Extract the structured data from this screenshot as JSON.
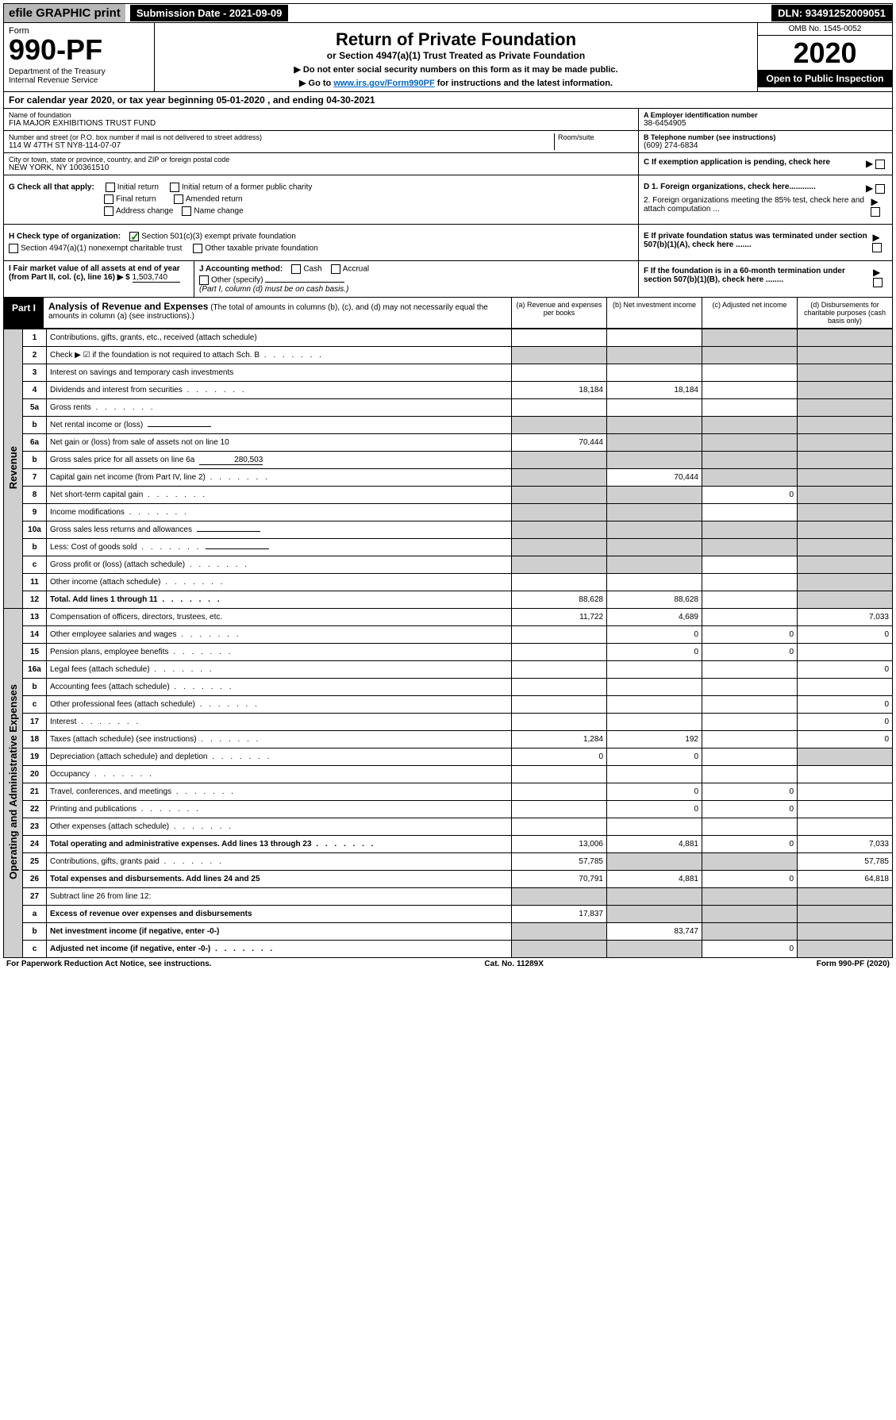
{
  "topbar": {
    "efile": "efile GRAPHIC print",
    "submission": "Submission Date - 2021-09-09",
    "dln": "DLN: 93491252009051"
  },
  "header": {
    "form_label": "Form",
    "form_number": "990-PF",
    "dept": "Department of the Treasury\nInternal Revenue Service",
    "title": "Return of Private Foundation",
    "subtitle": "or Section 4947(a)(1) Trust Treated as Private Foundation",
    "note1": "▶ Do not enter social security numbers on this form as it may be made public.",
    "note2_prefix": "▶ Go to ",
    "note2_link": "www.irs.gov/Form990PF",
    "note2_suffix": " for instructions and the latest information.",
    "omb": "OMB No. 1545-0052",
    "year": "2020",
    "open": "Open to Public Inspection"
  },
  "calyear": "For calendar year 2020, or tax year beginning 05-01-2020          , and ending 04-30-2021",
  "name_block": {
    "label": "Name of foundation",
    "value": "FIA MAJOR EXHIBITIONS TRUST FUND"
  },
  "ein_block": {
    "label": "A Employer identification number",
    "value": "38-6454905"
  },
  "addr_block": {
    "label": "Number and street (or P.O. box number if mail is not delivered to street address)",
    "value": "114 W 47TH ST NY8-114-07-07",
    "room_label": "Room/suite"
  },
  "phone_block": {
    "label": "B Telephone number (see instructions)",
    "value": "(609) 274-6834"
  },
  "city_block": {
    "label": "City or town, state or province, country, and ZIP or foreign postal code",
    "value": "NEW YORK, NY  100361510"
  },
  "c_block": "C If exemption application is pending, check here",
  "g_block": {
    "label": "G Check all that apply:",
    "initial": "Initial return",
    "final": "Final return",
    "address": "Address change",
    "initial_former": "Initial return of a former public charity",
    "amended": "Amended return",
    "name_change": "Name change"
  },
  "d_block": {
    "d1": "D 1. Foreign organizations, check here............",
    "d2": "2. Foreign organizations meeting the 85% test, check here and attach computation ..."
  },
  "h_block": {
    "label": "H Check type of organization:",
    "opt1": "Section 501(c)(3) exempt private foundation",
    "opt2": "Section 4947(a)(1) nonexempt charitable trust",
    "opt3": "Other taxable private foundation"
  },
  "e_block": "E  If private foundation status was terminated under section 507(b)(1)(A), check here .......",
  "i_block": {
    "label": "I Fair market value of all assets at end of year (from Part II, col. (c), line 16) ▶ $",
    "value": "1,503,740"
  },
  "j_block": {
    "label": "J Accounting method:",
    "cash": "Cash",
    "accrual": "Accrual",
    "other": "Other (specify)",
    "note": "(Part I, column (d) must be on cash basis.)"
  },
  "f_block": "F  If the foundation is in a 60-month termination under section 507(b)(1)(B), check here ........",
  "part1": {
    "label": "Part I",
    "title": "Analysis of Revenue and Expenses",
    "note": "(The total of amounts in columns (b), (c), and (d) may not necessarily equal the amounts in column (a) (see instructions).)",
    "col_a": "(a)   Revenue and expenses per books",
    "col_b": "(b)  Net investment income",
    "col_c": "(c)  Adjusted net income",
    "col_d": "(d)  Disbursements for charitable purposes (cash basis only)"
  },
  "vlabels": {
    "revenue": "Revenue",
    "expenses": "Operating and Administrative Expenses"
  },
  "rows": [
    {
      "n": "1",
      "d": "shade",
      "a": "",
      "b": "",
      "c": "shade"
    },
    {
      "n": "2",
      "d": "shade",
      "a": "shade",
      "b": "shade",
      "c": "shade",
      "dots": true
    },
    {
      "n": "3",
      "d": "shade",
      "a": "",
      "b": "",
      "c": ""
    },
    {
      "n": "4",
      "d": "shade",
      "a": "18,184",
      "b": "18,184",
      "c": "",
      "dots": true
    },
    {
      "n": "5a",
      "d": "shade",
      "a": "",
      "b": "",
      "c": "",
      "dots": true
    },
    {
      "n": "b",
      "d": "shade",
      "a": "shade",
      "b": "shade",
      "c": "shade",
      "inline": true
    },
    {
      "n": "6a",
      "d": "shade",
      "a": "70,444",
      "b": "shade",
      "c": "shade"
    },
    {
      "n": "b",
      "d": "shade",
      "a": "shade",
      "b": "shade",
      "c": "shade",
      "inline": true,
      "inline_val": "280,503"
    },
    {
      "n": "7",
      "d": "shade",
      "a": "shade",
      "b": "70,444",
      "c": "shade",
      "dots": true
    },
    {
      "n": "8",
      "d": "shade",
      "a": "shade",
      "b": "shade",
      "c": "0",
      "dots": true
    },
    {
      "n": "9",
      "d": "shade",
      "a": "shade",
      "b": "shade",
      "c": "",
      "dots": true
    },
    {
      "n": "10a",
      "d": "shade",
      "a": "shade",
      "b": "shade",
      "c": "shade",
      "inline": true
    },
    {
      "n": "b",
      "d": "shade",
      "a": "shade",
      "b": "shade",
      "c": "shade",
      "inline": true,
      "dots": true
    },
    {
      "n": "c",
      "d": "shade",
      "a": "shade",
      "b": "shade",
      "c": "",
      "dots": true
    },
    {
      "n": "11",
      "d": "shade",
      "a": "",
      "b": "",
      "c": "",
      "dots": true
    },
    {
      "n": "12",
      "d": "shade",
      "a": "88,628",
      "b": "88,628",
      "c": "",
      "dots": true,
      "bold": true
    }
  ],
  "exp_rows": [
    {
      "n": "13",
      "d": "7,033",
      "a": "11,722",
      "b": "4,689",
      "c": ""
    },
    {
      "n": "14",
      "d": "0",
      "a": "",
      "b": "0",
      "c": "0",
      "dots": true
    },
    {
      "n": "15",
      "d": "",
      "a": "",
      "b": "0",
      "c": "0",
      "dots": true
    },
    {
      "n": "16a",
      "d": "0",
      "a": "",
      "b": "",
      "c": "",
      "dots": true
    },
    {
      "n": "b",
      "d": "",
      "a": "",
      "b": "",
      "c": "",
      "dots": true
    },
    {
      "n": "c",
      "d": "0",
      "a": "",
      "b": "",
      "c": "",
      "dots": true
    },
    {
      "n": "17",
      "d": "0",
      "a": "",
      "b": "",
      "c": "",
      "dots": true
    },
    {
      "n": "18",
      "d": "0",
      "a": "1,284",
      "b": "192",
      "c": "",
      "dots": true
    },
    {
      "n": "19",
      "d": "shade",
      "a": "0",
      "b": "0",
      "c": "",
      "dots": true
    },
    {
      "n": "20",
      "d": "",
      "a": "",
      "b": "",
      "c": "",
      "dots": true
    },
    {
      "n": "21",
      "d": "",
      "a": "",
      "b": "0",
      "c": "0",
      "dots": true
    },
    {
      "n": "22",
      "d": "",
      "a": "",
      "b": "0",
      "c": "0",
      "dots": true
    },
    {
      "n": "23",
      "d": "",
      "a": "",
      "b": "",
      "c": "",
      "dots": true
    },
    {
      "n": "24",
      "d": "7,033",
      "a": "13,006",
      "b": "4,881",
      "c": "0",
      "dots": true,
      "bold": true
    },
    {
      "n": "25",
      "d": "57,785",
      "a": "57,785",
      "b": "shade",
      "c": "shade",
      "dots": true
    },
    {
      "n": "26",
      "d": "64,818",
      "a": "70,791",
      "b": "4,881",
      "c": "0",
      "bold": true
    },
    {
      "n": "27",
      "d": "shade",
      "a": "shade",
      "b": "shade",
      "c": "shade"
    },
    {
      "n": "a",
      "d": "shade",
      "a": "17,837",
      "b": "shade",
      "c": "shade",
      "bold": true
    },
    {
      "n": "b",
      "d": "shade",
      "a": "shade",
      "b": "83,747",
      "c": "shade",
      "bold": true
    },
    {
      "n": "c",
      "d": "shade",
      "a": "shade",
      "b": "shade",
      "c": "0",
      "bold": true,
      "dots": true
    }
  ],
  "footer": {
    "left": "For Paperwork Reduction Act Notice, see instructions.",
    "center": "Cat. No. 11289X",
    "right": "Form 990-PF (2020)"
  }
}
